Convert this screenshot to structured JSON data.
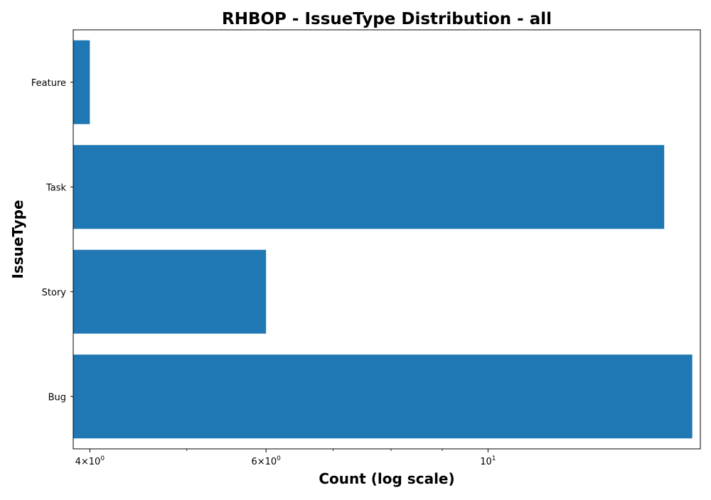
{
  "chart_data": {
    "type": "bar",
    "orientation": "horizontal",
    "title": "RHBOP - IssueType Distribution - all",
    "xlabel": "Count (log scale)",
    "ylabel": "IssueType",
    "x_scale": "log",
    "xlim": [
      3.85,
      16.3
    ],
    "categories": [
      "Feature",
      "Task",
      "Story",
      "Bug"
    ],
    "values": [
      4,
      15,
      6,
      16
    ],
    "major_ticks": [
      {
        "value": 4,
        "base": "4×10",
        "exp": "0"
      },
      {
        "value": 6,
        "base": "6×10",
        "exp": "0"
      },
      {
        "value": 10,
        "base": "10",
        "exp": "1"
      }
    ],
    "minor_ticks": [
      5,
      7,
      8,
      9
    ],
    "bar_color": "#1f77b4",
    "grid": false,
    "legend": "none"
  }
}
